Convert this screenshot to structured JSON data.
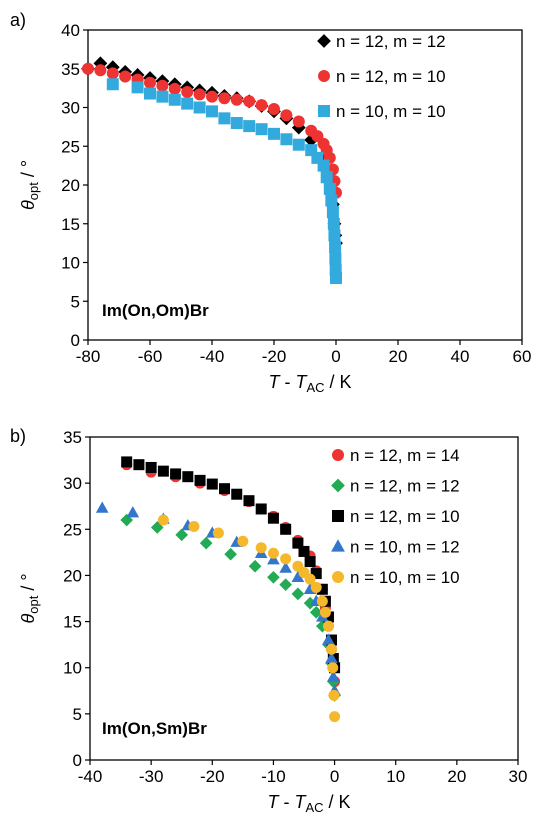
{
  "chart_data": [
    {
      "type": "scatter",
      "panel_label": "a)",
      "annotation": "Im(On,Om)Br",
      "xlabel": {
        "main": "T",
        "sep": " - ",
        "sym": "T",
        "sub": "AC",
        "unit": " / K"
      },
      "ylabel": {
        "sym": "θ",
        "sub": "opt",
        "unit": " / °"
      },
      "xlim": [
        -80,
        60
      ],
      "ylim": [
        0,
        40
      ],
      "xticks": [
        -80,
        -60,
        -40,
        -20,
        0,
        20,
        40,
        60
      ],
      "yticks": [
        0,
        5,
        10,
        15,
        20,
        25,
        30,
        35,
        40
      ],
      "legend_position": "top-right",
      "series": [
        {
          "name": "n = 12, m = 12",
          "color": "#000000",
          "marker": "diamond",
          "x": [
            -80,
            -76,
            -72,
            -68,
            -64,
            -60,
            -56,
            -52,
            -48,
            -44,
            -40,
            -36,
            -32,
            -28,
            -24,
            -20,
            -16,
            -12,
            -8,
            -4,
            -2,
            -1,
            -0.5,
            -0.2,
            0
          ],
          "y": [
            35,
            35.7,
            35.2,
            34.6,
            34.2,
            33.8,
            33.4,
            33,
            32.6,
            32.2,
            31.9,
            31.5,
            31.2,
            30.8,
            30.2,
            29.5,
            28.6,
            27.4,
            25.8,
            23.3,
            20.5,
            17.5,
            15,
            13.5,
            12.5
          ]
        },
        {
          "name": "n = 12, m = 10",
          "color": "#ee3333",
          "marker": "circle",
          "x": [
            -80,
            -76,
            -72,
            -68,
            -64,
            -60,
            -56,
            -52,
            -48,
            -44,
            -40,
            -36,
            -32,
            -28,
            -24,
            -20,
            -16,
            -12,
            -8,
            -6,
            -4,
            -3,
            -2,
            -1,
            -0.5,
            0
          ],
          "y": [
            35,
            34.8,
            34.4,
            34,
            33.6,
            33.2,
            32.8,
            32.4,
            32,
            31.7,
            31.4,
            31.2,
            31,
            30.8,
            30.3,
            29.8,
            29,
            28.2,
            27,
            26.3,
            25.3,
            24.5,
            23.5,
            22,
            20.5,
            19
          ]
        },
        {
          "name": "n = 10, m = 10",
          "color": "#33aadd",
          "marker": "square",
          "x": [
            -72,
            -64,
            -60,
            -56,
            -52,
            -48,
            -44,
            -40,
            -36,
            -32,
            -28,
            -24,
            -20,
            -16,
            -12,
            -8,
            -6,
            -4,
            -3,
            -2,
            -1.5,
            -1,
            -0.7,
            -0.5,
            -0.3,
            -0.2,
            -0.1,
            0
          ],
          "y": [
            33,
            32.6,
            31.8,
            31.4,
            31,
            30.5,
            30,
            29.5,
            28.6,
            28,
            27.6,
            27.2,
            26.6,
            25.9,
            25.2,
            24.5,
            23.5,
            22.5,
            21,
            19.5,
            18,
            16.5,
            15,
            13.5,
            12,
            10.5,
            9,
            8
          ]
        }
      ]
    },
    {
      "type": "scatter",
      "panel_label": "b)",
      "annotation": "Im(On,Sm)Br",
      "xlabel": {
        "main": "T",
        "sep": " - ",
        "sym": "T",
        "sub": "AC",
        "unit": " / K"
      },
      "ylabel": {
        "sym": "θ",
        "sub": "opt",
        "unit": " / °"
      },
      "xlim": [
        -40,
        30
      ],
      "ylim": [
        0,
        35
      ],
      "xticks": [
        -40,
        -30,
        -20,
        -10,
        0,
        10,
        20,
        30
      ],
      "yticks": [
        0,
        5,
        10,
        15,
        20,
        25,
        30,
        35
      ],
      "legend_position": "top-right",
      "series": [
        {
          "name": "n = 12, m = 14",
          "color": "#ee3333",
          "marker": "circle",
          "x": [
            -34,
            -30,
            -26,
            -22,
            -18,
            -14,
            -10,
            -8,
            -6,
            -4,
            -3,
            -2,
            -1.5,
            -1,
            -0.5,
            -0.2,
            0
          ],
          "y": [
            32,
            31.2,
            30.7,
            30,
            29.2,
            28,
            26.4,
            25.2,
            23.8,
            22.1,
            20.5,
            18.5,
            16.5,
            14.5,
            12,
            10,
            8.5
          ]
        },
        {
          "name": "n = 12, m = 12",
          "color": "#22aa55",
          "marker": "diamond",
          "x": [
            -34,
            -29,
            -25,
            -21,
            -17,
            -13,
            -10,
            -8,
            -6,
            -4,
            -3,
            -2,
            -1,
            -0.5,
            -0.2,
            0
          ],
          "y": [
            26,
            25.2,
            24.4,
            23.5,
            22.3,
            21,
            19.8,
            19,
            18,
            17,
            16,
            14.5,
            12.5,
            10.5,
            8.5,
            7
          ]
        },
        {
          "name": "n = 12, m = 10",
          "color": "#000000",
          "marker": "square",
          "x": [
            -34,
            -32,
            -30,
            -28,
            -26,
            -24,
            -22,
            -20,
            -18,
            -16,
            -14,
            -12,
            -10,
            -8,
            -6,
            -5,
            -4,
            -3,
            -2,
            -1.5,
            -1,
            -0.5,
            -0.2,
            0
          ],
          "y": [
            32.3,
            32,
            31.7,
            31.3,
            31,
            30.7,
            30.3,
            29.9,
            29.4,
            28.8,
            28.1,
            27.2,
            26.2,
            25,
            23.5,
            22.6,
            21.5,
            20.2,
            18.5,
            17.2,
            15.5,
            13,
            11,
            10
          ]
        },
        {
          "name": "n = 10, m = 12",
          "color": "#3377cc",
          "marker": "triangle",
          "x": [
            -38,
            -33,
            -28,
            -24,
            -20,
            -16,
            -12,
            -10,
            -8,
            -6,
            -4,
            -3,
            -2,
            -1,
            -0.5,
            -0.2,
            0
          ],
          "y": [
            27.3,
            26.8,
            26.1,
            25.4,
            24.6,
            23.6,
            22.4,
            21.7,
            20.8,
            19.8,
            18.5,
            17.2,
            15.5,
            13,
            11,
            9,
            7.5
          ]
        },
        {
          "name": "n = 10, m = 10",
          "color": "#f5b82a",
          "marker": "circle",
          "x": [
            -28,
            -23,
            -19,
            -15,
            -12,
            -10,
            -8,
            -6,
            -5,
            -4,
            -3,
            -2,
            -1.5,
            -1,
            -0.5,
            -0.3,
            -0.1,
            0
          ],
          "y": [
            26,
            25.3,
            24.6,
            23.7,
            23,
            22.4,
            21.8,
            21,
            20.3,
            19.6,
            18.7,
            17.2,
            16,
            14.5,
            12,
            10,
            7,
            4.7
          ]
        }
      ]
    }
  ]
}
